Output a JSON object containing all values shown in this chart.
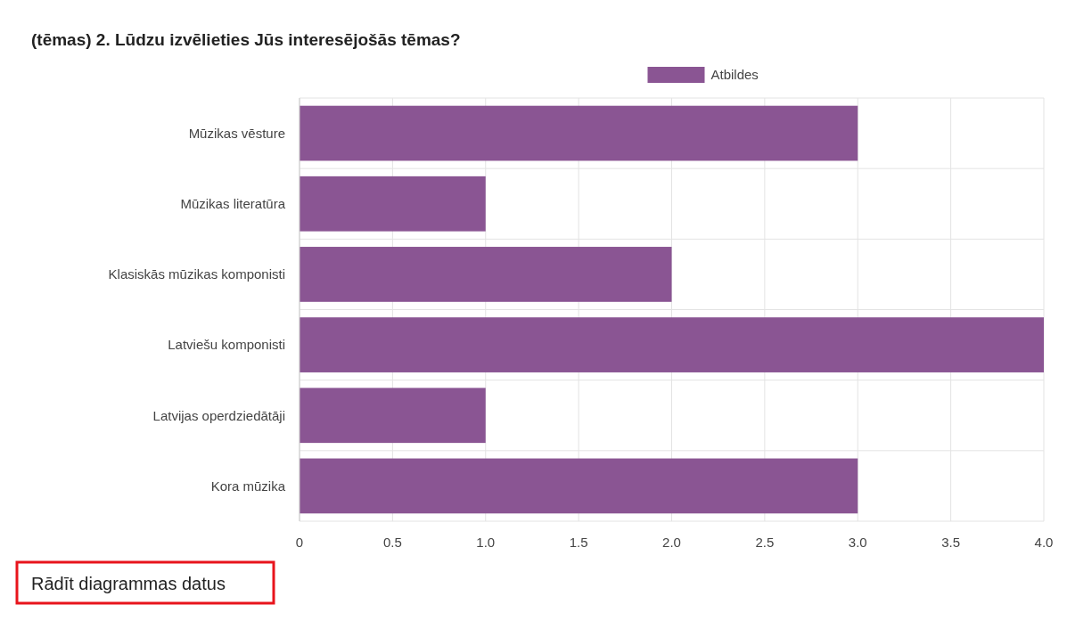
{
  "chart_data": {
    "type": "bar",
    "orientation": "horizontal",
    "title": "(tēmas) 2. Lūdzu izvēlieties Jūs interesējošās tēmas?",
    "categories": [
      "Mūzikas vēsture",
      "Mūzikas literatūra",
      "Klasiskās mūzikas komponisti",
      "Latviešu komponisti",
      "Latvijas operdziedātāji",
      "Kora mūzika"
    ],
    "series": [
      {
        "name": "Atbildes",
        "color": "#8a5593",
        "values": [
          3,
          1,
          2,
          4,
          1,
          3
        ]
      }
    ],
    "xlim": [
      0,
      4
    ],
    "xticks": [
      0,
      0.5,
      {
        "value": 1,
        "label": "1.0"
      },
      1.5,
      {
        "value": 2,
        "label": "2.0"
      },
      2.5,
      {
        "value": 3,
        "label": "3.0"
      },
      3.5,
      {
        "value": 4,
        "label": "4.0"
      }
    ],
    "grid": true,
    "legend": "top",
    "annotations": [
      "Rādīt diagrammas datus"
    ]
  }
}
